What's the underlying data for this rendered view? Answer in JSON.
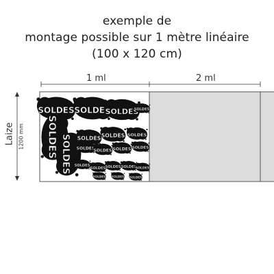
{
  "title": {
    "line1": "exemple de",
    "line2": "montage possible sur 1 mètre linéaire",
    "line3": "(100 x 120 cm)"
  },
  "labels": {
    "ml1": "1 ml",
    "ml2": "2 ml",
    "laize": "Laize",
    "laize_size": "1200 mm"
  },
  "sticker_text": "SOLDES",
  "colors": {
    "frame_border": "#555555",
    "roll_fill": "#dcdcdc",
    "sticker_fill": "#111111",
    "sticker_text": "#ffffff",
    "arrow": "#333333"
  }
}
